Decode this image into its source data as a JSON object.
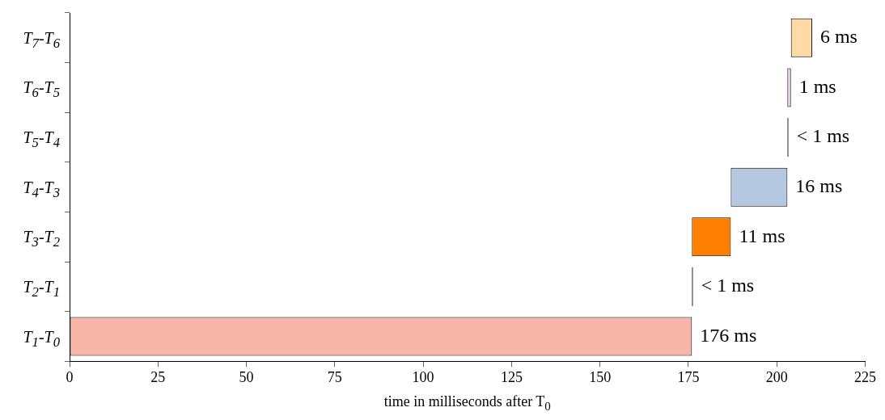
{
  "chart_data": {
    "type": "bar",
    "orientation": "horizontal",
    "categories": [
      "T$_{7}$-T$_{6}$",
      "T$_{6}$-T$_{5}$",
      "T$_{5}$-T$_{4}$",
      "T$_{4}$-T$_{3}$",
      "T$_{3}$-T$_{2}$",
      "T$_{2}$-T$_{1}$",
      "T$_{1}$-T$_{0}$"
    ],
    "values": [
      6,
      1,
      0.3,
      16,
      11,
      0.3,
      176
    ],
    "base": [
      204,
      203,
      203,
      187,
      176,
      176,
      0
    ],
    "colors": [
      "#ffd9a6",
      "#e8d0ec",
      "#000000",
      "#b4c9e0",
      "#ff8000",
      "#000000",
      "#f8b6a8"
    ],
    "value_labels": [
      "6 ms",
      "1 ms",
      "< 1 ms",
      "16 ms",
      "11 ms",
      "< 1 ms",
      "176 ms"
    ],
    "xlabel": "time in milliseconds after T$_{0}$",
    "xlim": [
      0,
      225
    ],
    "xticks": [
      0,
      25,
      50,
      75,
      100,
      125,
      150,
      175,
      200,
      225
    ]
  }
}
